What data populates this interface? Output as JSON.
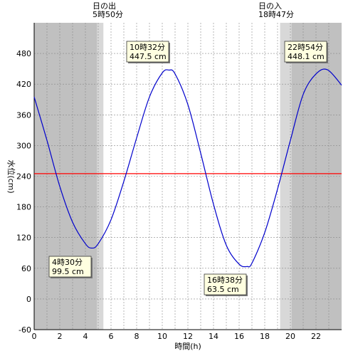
{
  "chart_data": {
    "type": "line",
    "xlabel": "時間(h)",
    "ylabel": "水位(cm)",
    "xlim": [
      0,
      24
    ],
    "ylim": [
      -60,
      540
    ],
    "x_ticks": [
      0,
      2,
      4,
      6,
      8,
      10,
      12,
      14,
      16,
      18,
      20,
      22
    ],
    "y_ticks": [
      -60,
      0,
      60,
      120,
      180,
      240,
      300,
      360,
      420,
      480
    ],
    "grid": true,
    "mean_line": {
      "value": 245,
      "color": "#ff0000"
    },
    "series": [
      {
        "color": "#0000cc",
        "x": [
          0,
          1,
          2,
          3,
          4,
          4.5,
          5,
          6,
          7,
          8,
          9,
          10,
          10.53,
          11,
          12,
          13,
          14,
          15,
          16,
          16.63,
          17,
          18,
          19,
          20,
          21,
          22,
          22.9,
          24
        ],
        "y": [
          395,
          310,
          220,
          150,
          108,
          99.5,
          108,
          155,
          230,
          315,
          395,
          442,
          447.5,
          440,
          380,
          285,
          185,
          105,
          68,
          63.5,
          70,
          130,
          215,
          310,
          400,
          440,
          448.1,
          418
        ]
      }
    ],
    "sun": {
      "sunrise_label": "日の出",
      "sunrise_time": "5時50分",
      "sunset_label": "日の入",
      "sunset_time": "18時47分",
      "night_color": "#c0c0c0",
      "twilight_color": "#d8d8d8",
      "dawn_twilight": [
        4.9,
        5.4
      ],
      "day": [
        5.4,
        19.2
      ],
      "dusk_twilight": [
        19.2,
        20.1
      ]
    },
    "annotations": [
      {
        "time": "4時30分",
        "level": "99.5 cm"
      },
      {
        "time": "10時32分",
        "level": "447.5 cm"
      },
      {
        "time": "16時38分",
        "level": "63.5 cm"
      },
      {
        "time": "22時54分",
        "level": "448.1 cm"
      }
    ]
  }
}
